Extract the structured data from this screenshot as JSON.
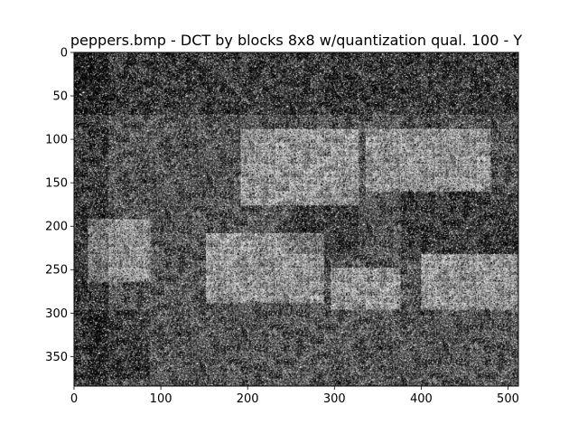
{
  "chart_data": {
    "type": "heatmap",
    "title": "peppers.bmp - DCT by blocks 8x8  w/quantization qual. 100 - Y",
    "xlabel": "",
    "ylabel": "",
    "xlim": [
      0,
      512
    ],
    "ylim": [
      384,
      0
    ],
    "x_ticks": [
      0,
      100,
      200,
      300,
      400,
      500
    ],
    "y_ticks": [
      0,
      50,
      100,
      150,
      200,
      250,
      300,
      350
    ],
    "grid": false,
    "colormap": "gray",
    "image_width": 512,
    "image_height": 384,
    "block_size": 8,
    "dark_regions": [
      {
        "x0": 20,
        "y0": 300,
        "x1": 90,
        "y1": 380
      },
      {
        "x0": 0,
        "y0": 0,
        "x1": 512,
        "y1": 70
      },
      {
        "x0": 0,
        "y0": 0,
        "x1": 40,
        "y1": 384
      },
      {
        "x0": 380,
        "y0": 160,
        "x1": 512,
        "y1": 230
      },
      {
        "x0": 250,
        "y0": 180,
        "x1": 330,
        "y1": 230
      }
    ],
    "bright_regions": [
      {
        "x0": 190,
        "y0": 85,
        "x1": 330,
        "y1": 175
      },
      {
        "x0": 340,
        "y0": 90,
        "x1": 480,
        "y1": 160
      },
      {
        "x0": 20,
        "y0": 190,
        "x1": 90,
        "y1": 265
      },
      {
        "x0": 150,
        "y0": 210,
        "x1": 290,
        "y1": 290
      },
      {
        "x0": 300,
        "y0": 245,
        "x1": 380,
        "y1": 300
      },
      {
        "x0": 400,
        "y0": 235,
        "x1": 512,
        "y1": 300
      }
    ]
  }
}
